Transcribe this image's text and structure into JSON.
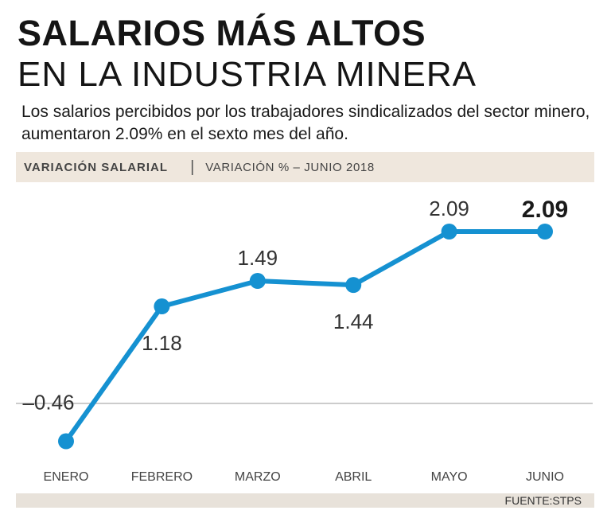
{
  "title_line1": "SALARIOS MÁS ALTOS",
  "title_line2": "EN LA INDUSTRIA MINERA",
  "subtitle": "Los salarios percibidos por los trabajadores sindicalizados del sector  minero, aumentaron 2.09% en el sexto mes del año.",
  "band": {
    "left": "VARIACIÓN SALARIAL",
    "separator": "|",
    "right": "VARIACIÓN % – JUNIO 2018"
  },
  "source": "FUENTE:STPS",
  "colors": {
    "line": "#1591d1",
    "band": "#efe7dd",
    "zero_line": "#9a9a9a"
  },
  "chart_data": {
    "type": "line",
    "title": "VARIACIÓN % – JUNIO 2018",
    "categories": [
      "ENERO",
      "FEBRERO",
      "MARZO",
      "ABRIL",
      "MAYO",
      "JUNIO"
    ],
    "values": [
      -0.46,
      1.18,
      1.49,
      1.44,
      2.09,
      2.09
    ],
    "labels": [
      "–0.46",
      "1.18",
      "1.49",
      "1.44",
      "2.09",
      "2.09"
    ],
    "label_position": [
      "above",
      "below",
      "above",
      "below",
      "above",
      "above"
    ],
    "highlight_last": true,
    "ylim": [
      -0.6,
      2.2
    ],
    "zero_line": true,
    "xlabel": "",
    "ylabel": ""
  }
}
